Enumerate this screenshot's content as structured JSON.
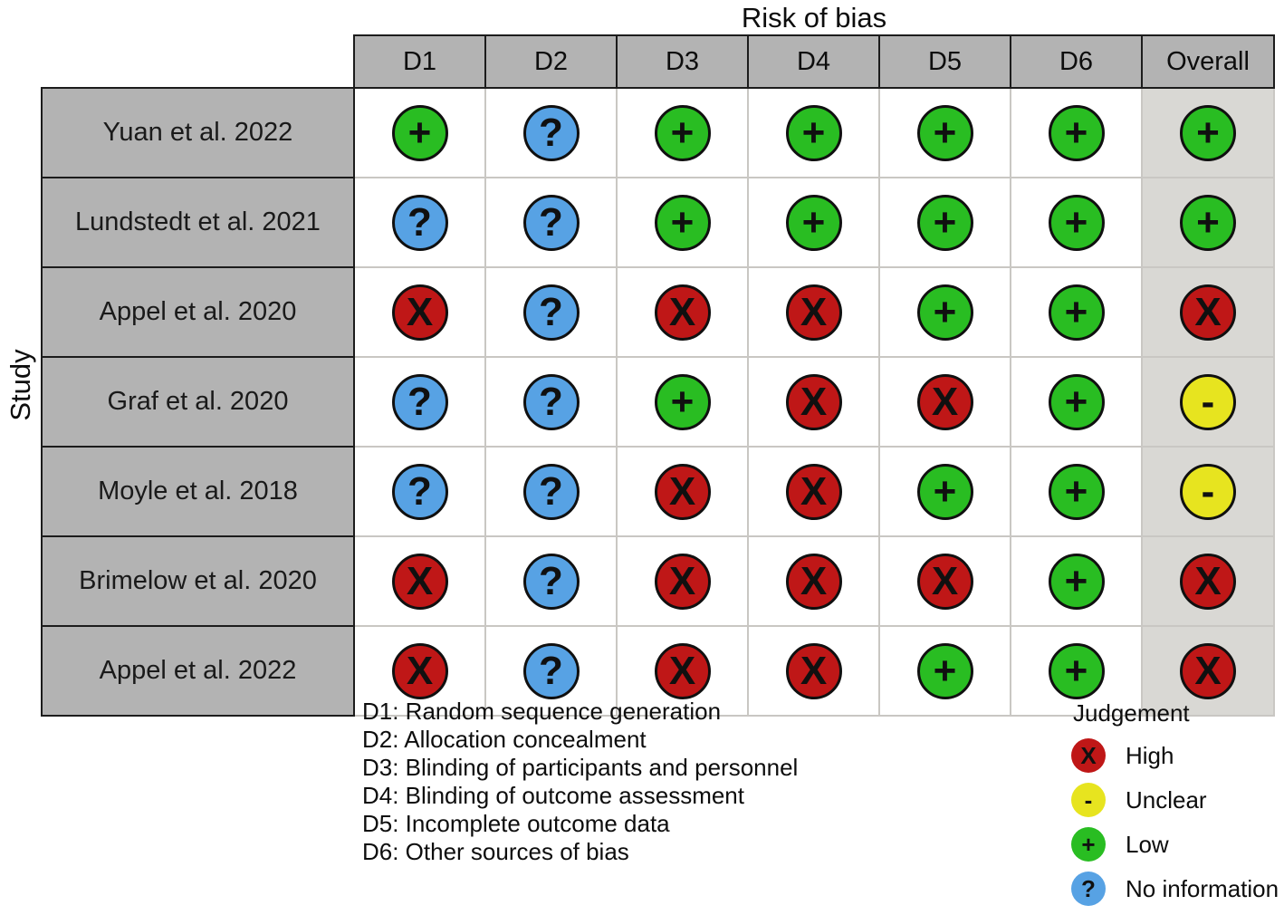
{
  "title": "Risk of bias",
  "axis_label": "Study",
  "chart_data": {
    "type": "table",
    "title": "Risk of bias",
    "row_axis_label": "Study",
    "columns": [
      "D1",
      "D2",
      "D3",
      "D4",
      "D5",
      "D6",
      "Overall"
    ],
    "rows": [
      {
        "study": "Yuan et al. 2022",
        "judgements": [
          "low",
          "no_information",
          "low",
          "low",
          "low",
          "low"
        ],
        "overall": "low"
      },
      {
        "study": "Lundstedt et al. 2021",
        "judgements": [
          "no_information",
          "no_information",
          "low",
          "low",
          "low",
          "low"
        ],
        "overall": "low"
      },
      {
        "study": "Appel et al. 2020",
        "judgements": [
          "high",
          "no_information",
          "high",
          "high",
          "low",
          "low"
        ],
        "overall": "high"
      },
      {
        "study": "Graf et al. 2020",
        "judgements": [
          "no_information",
          "no_information",
          "low",
          "high",
          "high",
          "low"
        ],
        "overall": "unclear"
      },
      {
        "study": "Moyle et al. 2018",
        "judgements": [
          "no_information",
          "no_information",
          "high",
          "high",
          "low",
          "low"
        ],
        "overall": "unclear"
      },
      {
        "study": "Brimelow et al. 2020",
        "judgements": [
          "high",
          "no_information",
          "high",
          "high",
          "high",
          "low"
        ],
        "overall": "high"
      },
      {
        "study": "Appel et al. 2022",
        "judgements": [
          "high",
          "no_information",
          "high",
          "high",
          "low",
          "low"
        ],
        "overall": "high"
      }
    ]
  },
  "judgements": {
    "high": {
      "symbol": "X",
      "color": "#bf1717",
      "label": "High"
    },
    "unclear": {
      "symbol": "-",
      "color": "#e7e41f",
      "label": "Unclear"
    },
    "low": {
      "symbol": "+",
      "color": "#29bd22",
      "label": "Low"
    },
    "no_information": {
      "symbol": "?",
      "color": "#57a2e4",
      "label": "No information"
    }
  },
  "footnotes": [
    "D1: Random sequence generation",
    "D2: Allocation concealment",
    "D3: Blinding of participants and personnel",
    "D4: Blinding of outcome assessment",
    "D5: Incomplete outcome data",
    "D6: Other sources of bias"
  ],
  "legend": {
    "title": "Judgement",
    "order": [
      "high",
      "unclear",
      "low",
      "no_information"
    ]
  },
  "colors": {
    "header_bg": "#b3b3b3",
    "overall_col_bg": "#d9d8d4",
    "grid_line": "#c9c7c3",
    "border_dark": "#1c1c1c"
  }
}
